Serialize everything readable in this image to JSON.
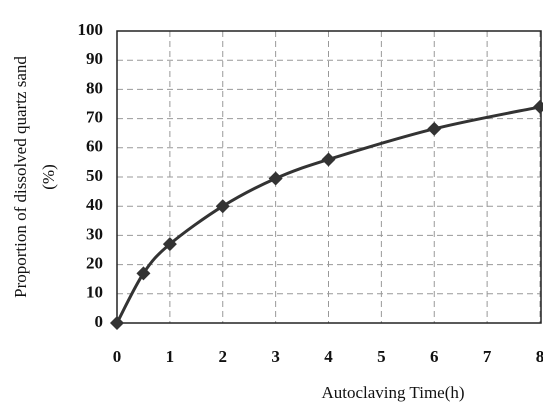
{
  "chart_data": {
    "type": "line",
    "ylabel": [
      "Proportion of dissolved  quartz sand",
      "(%)"
    ],
    "xlabel": "Autoclaving Time(h)",
    "x": [
      0,
      0.5,
      1,
      2,
      3,
      4,
      6,
      8
    ],
    "series": [
      {
        "color": "#333333",
        "values": [
          0,
          17,
          27,
          40,
          49.5,
          56,
          66.5,
          74
        ]
      }
    ],
    "xlim": [
      0,
      8
    ],
    "xticks": [
      0,
      1,
      2,
      3,
      4,
      5,
      6,
      7,
      8
    ],
    "ylim": [
      0,
      100
    ],
    "yticks": [
      0,
      10,
      20,
      30,
      40,
      50,
      60,
      70,
      80,
      90,
      100
    ],
    "grid": true
  }
}
